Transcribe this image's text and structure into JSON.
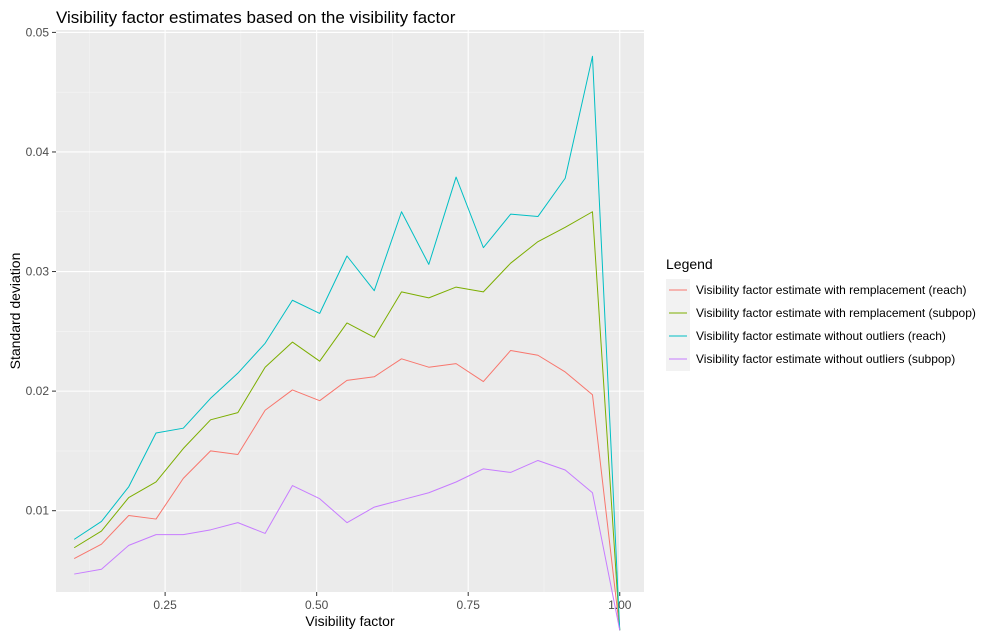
{
  "chart_data": {
    "type": "line",
    "title": "Visibility factor estimates based on the visibility factor",
    "xlabel": "Visibility factor",
    "ylabel": "Standard deviation",
    "xlim": [
      0.07,
      1.04
    ],
    "ylim": [
      0.0032,
      0.0502
    ],
    "x_ticks": [
      0.25,
      0.5,
      0.75,
      1.0
    ],
    "x_tick_labels": [
      "0.25",
      "0.50",
      "0.75",
      "1.00"
    ],
    "y_ticks": [
      0.01,
      0.02,
      0.03,
      0.04,
      0.05
    ],
    "y_tick_labels": [
      "0.01",
      "0.02",
      "0.03",
      "0.04",
      "0.05"
    ],
    "grid": true,
    "legend_position": "right",
    "legend_title": "Legend",
    "x": [
      0.1,
      0.145,
      0.19,
      0.235,
      0.28,
      0.325,
      0.37,
      0.415,
      0.46,
      0.505,
      0.55,
      0.595,
      0.64,
      0.685,
      0.73,
      0.775,
      0.82,
      0.865,
      0.91,
      0.955,
      1.0
    ],
    "series": [
      {
        "name": "Visibility factor estimate with remplacement (reach)",
        "color": "#F8766D",
        "values": [
          0.006,
          0.0072,
          0.0096,
          0.0093,
          0.0127,
          0.015,
          0.0147,
          0.0184,
          0.0201,
          0.0192,
          0.0209,
          0.0212,
          0.0227,
          0.022,
          0.0223,
          0.0208,
          0.0234,
          0.023,
          0.0216,
          0.0197,
          0.0
        ]
      },
      {
        "name": "Visibility factor estimate with remplacement (subpop)",
        "color": "#7CAE00",
        "values": [
          0.0069,
          0.0083,
          0.0111,
          0.0124,
          0.0152,
          0.0176,
          0.0182,
          0.022,
          0.0241,
          0.0225,
          0.0257,
          0.0245,
          0.0283,
          0.0278,
          0.0287,
          0.0283,
          0.0307,
          0.0325,
          0.0337,
          0.035,
          0.0
        ]
      },
      {
        "name": "Visibility factor estimate without outliers (reach)",
        "color": "#00BFC4",
        "values": [
          0.0076,
          0.0091,
          0.012,
          0.0165,
          0.0169,
          0.0194,
          0.0215,
          0.024,
          0.0276,
          0.0265,
          0.0313,
          0.0284,
          0.035,
          0.0306,
          0.0379,
          0.032,
          0.0348,
          0.0346,
          0.0378,
          0.048,
          0.0
        ]
      },
      {
        "name": "Visibility factor estimate without outliers (subpop)",
        "color": "#C77CFF",
        "values": [
          0.0047,
          0.0051,
          0.0071,
          0.008,
          0.008,
          0.0084,
          0.009,
          0.0081,
          0.0121,
          0.011,
          0.009,
          0.0103,
          0.0109,
          0.0115,
          0.0124,
          0.0135,
          0.0132,
          0.0142,
          0.0134,
          0.0115,
          0.0
        ]
      }
    ]
  }
}
